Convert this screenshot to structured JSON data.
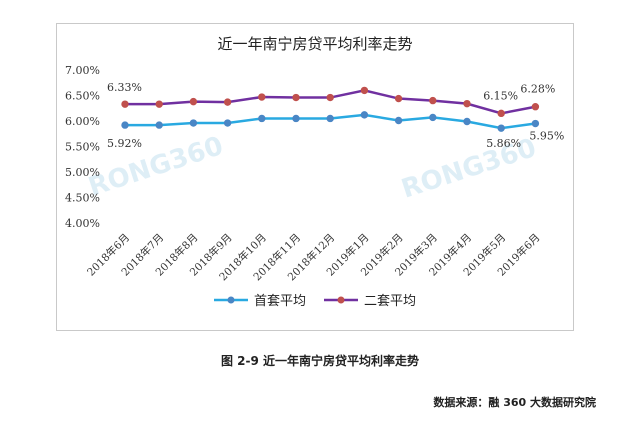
{
  "chart_data": {
    "type": "line",
    "title": "近一年南宁房贷平均利率走势",
    "categories": [
      "2018年6月",
      "2018年7月",
      "2018年8月",
      "2018年9月",
      "2018年10月",
      "2018年11月",
      "2018年12月",
      "2019年1月",
      "2019年2月",
      "2019年3月",
      "2019年4月",
      "2019年5月",
      "2019年6月"
    ],
    "series": [
      {
        "name": "首套平均",
        "color": "#29a9e1",
        "values": [
          5.92,
          5.92,
          5.96,
          5.96,
          6.05,
          6.05,
          6.05,
          6.12,
          6.01,
          6.07,
          5.99,
          5.86,
          5.95
        ]
      },
      {
        "name": "二套平均",
        "color": "#7030a0",
        "values": [
          6.33,
          6.33,
          6.38,
          6.37,
          6.47,
          6.46,
          6.46,
          6.6,
          6.44,
          6.4,
          6.34,
          6.15,
          6.28
        ]
      }
    ],
    "y_ticks": [
      "7.00%",
      "6.50%",
      "6.00%",
      "5.50%",
      "5.00%",
      "4.50%",
      "4.00%"
    ],
    "ylim": [
      4.0,
      7.0
    ],
    "data_labels": [
      {
        "series": 1,
        "index": 0,
        "text": "6.33%"
      },
      {
        "series": 0,
        "index": 0,
        "text": "5.92%"
      },
      {
        "series": 1,
        "index": 11,
        "text": "6.15%"
      },
      {
        "series": 1,
        "index": 12,
        "text": "6.28%"
      },
      {
        "series": 0,
        "index": 11,
        "text": "5.86%"
      },
      {
        "series": 0,
        "index": 12,
        "text": "5.95%"
      }
    ],
    "legend_position": "bottom",
    "grid": false,
    "watermark": "RONG360"
  },
  "caption": "图 2-9  近一年南宁房贷平均利率走势",
  "source": "数据来源：融 360 大数据研究院"
}
